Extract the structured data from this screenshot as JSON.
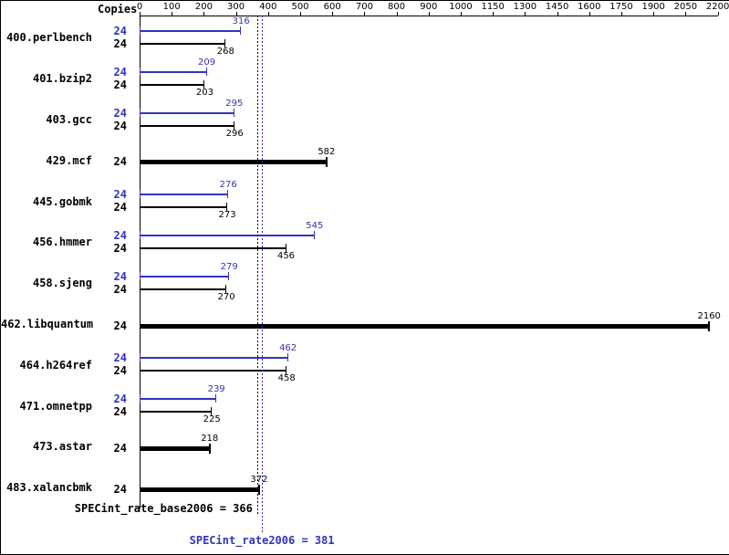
{
  "colors": {
    "background": "#ffffff",
    "base": "#000000",
    "peak": "#3333bb"
  },
  "header": {
    "copies_label": "Copies"
  },
  "chart_data": {
    "type": "bar",
    "orientation": "horizontal",
    "x_axis": {
      "ticks": [
        0,
        100,
        200,
        300,
        400,
        500,
        600,
        700,
        800,
        900,
        1000,
        1150,
        1300,
        1450,
        1600,
        1750,
        1900,
        2050,
        2200
      ],
      "range": [
        0,
        2200
      ],
      "scale_note": "equal pixel spacing per tick interval; 100-unit steps up to 1000, 150-unit steps from 1000 to 2200"
    },
    "benchmarks": [
      {
        "name": "400.perlbench",
        "copies": 24,
        "peak": 316,
        "base": 268
      },
      {
        "name": "401.bzip2",
        "copies": 24,
        "peak": 209,
        "base": 203
      },
      {
        "name": "403.gcc",
        "copies": 24,
        "peak": 295,
        "base": 296
      },
      {
        "name": "429.mcf",
        "copies": 24,
        "single": 582
      },
      {
        "name": "445.gobmk",
        "copies": 24,
        "peak": 276,
        "base": 273
      },
      {
        "name": "456.hmmer",
        "copies": 24,
        "peak": 545,
        "base": 456
      },
      {
        "name": "458.sjeng",
        "copies": 24,
        "peak": 279,
        "base": 270
      },
      {
        "name": "462.libquantum",
        "copies": 24,
        "single": 2160
      },
      {
        "name": "464.h264ref",
        "copies": 24,
        "peak": 462,
        "base": 458
      },
      {
        "name": "471.omnetpp",
        "copies": 24,
        "peak": 239,
        "base": 225
      },
      {
        "name": "473.astar",
        "copies": 24,
        "single": 218
      },
      {
        "name": "483.xalancbmk",
        "copies": 24,
        "single": 372
      }
    ],
    "summary": {
      "base_text": "SPECint_rate_base2006 = 366",
      "base_value": 366,
      "peak_text": "SPECint_rate2006 = 381",
      "peak_value": 381
    }
  }
}
